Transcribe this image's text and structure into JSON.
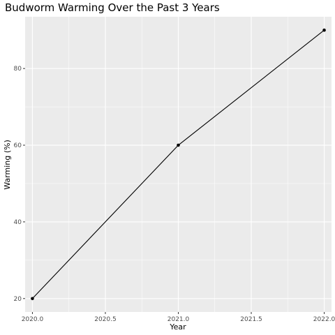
{
  "chart_data": {
    "type": "line",
    "title": "Budworm Warming Over the Past 3 Years",
    "xlabel": "Year",
    "ylabel": "Warming (%)",
    "x": [
      2020,
      2021,
      2022
    ],
    "series": [
      {
        "values": [
          20,
          60,
          90
        ]
      }
    ],
    "xlim": [
      2019.95,
      2022.05
    ],
    "ylim": [
      16.5,
      93.5
    ],
    "x_ticks": [
      2020.0,
      2020.5,
      2021.0,
      2021.5,
      2022.0
    ],
    "x_tick_labels": [
      "2020.0",
      "2020.5",
      "2021.0",
      "2021.5",
      "2022.0"
    ],
    "y_ticks": [
      20,
      40,
      60,
      80
    ],
    "y_tick_labels": [
      "20",
      "40",
      "60",
      "80"
    ],
    "grid": true,
    "colors": {
      "panel_background": "#ebebeb",
      "grid_major": "#ffffff",
      "line": "#000000",
      "point": "#000000"
    }
  }
}
